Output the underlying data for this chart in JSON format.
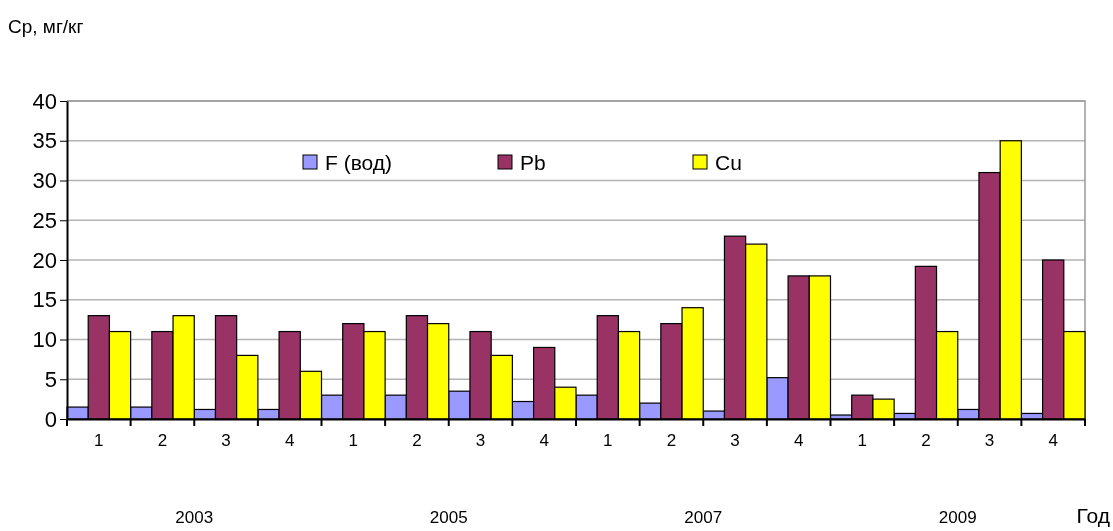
{
  "chart_data": {
    "type": "bar",
    "ylabel": "Ср, мг/кг",
    "xlabel": "Год",
    "categories": [
      "1",
      "2",
      "3",
      "4",
      "1",
      "2",
      "3",
      "4",
      "1",
      "2",
      "3",
      "4",
      "1",
      "2",
      "3",
      "4"
    ],
    "series": [
      {
        "name": "F (вод)",
        "color": "#9999ff",
        "values": [
          1.5,
          1.5,
          1.2,
          1.2,
          3,
          3,
          3.5,
          2.2,
          3,
          2,
          1,
          5.2,
          0.5,
          0.7,
          1.2,
          0.7
        ]
      },
      {
        "name": "Pb",
        "color": "#993366",
        "values": [
          13,
          11,
          13,
          11,
          12,
          13,
          11,
          9,
          13,
          12,
          23,
          18,
          3,
          19.2,
          31,
          20
        ]
      },
      {
        "name": "Cu",
        "color": "#ffff00",
        "values": [
          11,
          13,
          8,
          6,
          11,
          12,
          8,
          4,
          11,
          14,
          22,
          18,
          2.5,
          11,
          35,
          11
        ]
      }
    ],
    "annotations": [
      "2003",
      "2005",
      "2007",
      "2009"
    ],
    "ylim": [
      0,
      40
    ],
    "yticks": [
      0,
      5,
      10,
      15,
      20,
      25,
      30,
      35,
      40
    ],
    "grid": "y",
    "legend": "top"
  }
}
